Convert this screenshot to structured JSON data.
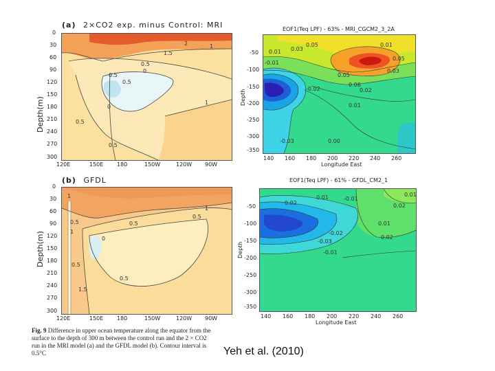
{
  "panel_a": {
    "label": "(a)",
    "title": "2×CO2 exp. minus Control: MRI",
    "ylabel": "Depth(m)",
    "yticks": [
      "0",
      "30",
      "60",
      "90",
      "120",
      "150",
      "180",
      "210",
      "240",
      "270",
      "300"
    ],
    "xticks": [
      "120E",
      "150E",
      "180",
      "150W",
      "120W",
      "90W"
    ],
    "contour_labels": [
      "2",
      "1.5",
      "1",
      "0.5",
      "0.5",
      "0",
      "0.5",
      "1",
      "0",
      "0.5",
      "0.5"
    ]
  },
  "panel_b": {
    "label": "(b)",
    "title": "GFDL",
    "ylabel": "Depth(m)",
    "yticks": [
      "0",
      "30",
      "60",
      "90",
      "120",
      "150",
      "180",
      "210",
      "240",
      "270",
      "300"
    ],
    "xticks": [
      "120E",
      "150E",
      "180",
      "150W",
      "120W",
      "90W"
    ],
    "contour_labels": [
      "1",
      "1",
      "0.5",
      "0.5",
      "1",
      "0.5",
      "0",
      "0.5",
      "0.5",
      "1.5"
    ]
  },
  "eof_top": {
    "title": "EOF1(Teq LPF) - 63% - MRI_CGCM2_3_2A",
    "ylabel": "Depth",
    "xlabel": "Longitude East",
    "yticks": [
      "-50",
      "-100",
      "-150",
      "-200",
      "-250",
      "-300",
      "-350"
    ],
    "xticks": [
      "140",
      "160",
      "180",
      "200",
      "220",
      "240",
      "260"
    ],
    "contour_labels": [
      "0.01",
      "0.03",
      "0.05",
      "0.05",
      "0.01",
      "0.05",
      "0.03",
      "0.02",
      "0.01",
      "0.00",
      "-0.01",
      "-0.02",
      "-0.03",
      "0.06"
    ]
  },
  "eof_bottom": {
    "title": "EOF1(Teq LPF) - 61% - GFDL_CM2_1",
    "ylabel": "Depth",
    "xlabel": "Longitude East",
    "yticks": [
      "-50",
      "-100",
      "-150",
      "-200",
      "-250",
      "-300",
      "-350"
    ],
    "xticks": [
      "140",
      "160",
      "180",
      "200",
      "220",
      "240",
      "260"
    ],
    "contour_labels": [
      "0.02",
      "0.01",
      "-0.01",
      "-0.02",
      "-0.03",
      "-0.01",
      "0.01",
      "0.02",
      "0.01",
      "0.02"
    ]
  },
  "caption": {
    "lead": "Fig. 9",
    "text": " Difference in upper ocean temperature along the equator from the surface to the depth of 300 m between the control run and the 2 × CO2 run in the MRI model (a) and the GFDL model (b). Contour interval is 0.5°C"
  },
  "citation": "Yeh et al. (2010)"
}
